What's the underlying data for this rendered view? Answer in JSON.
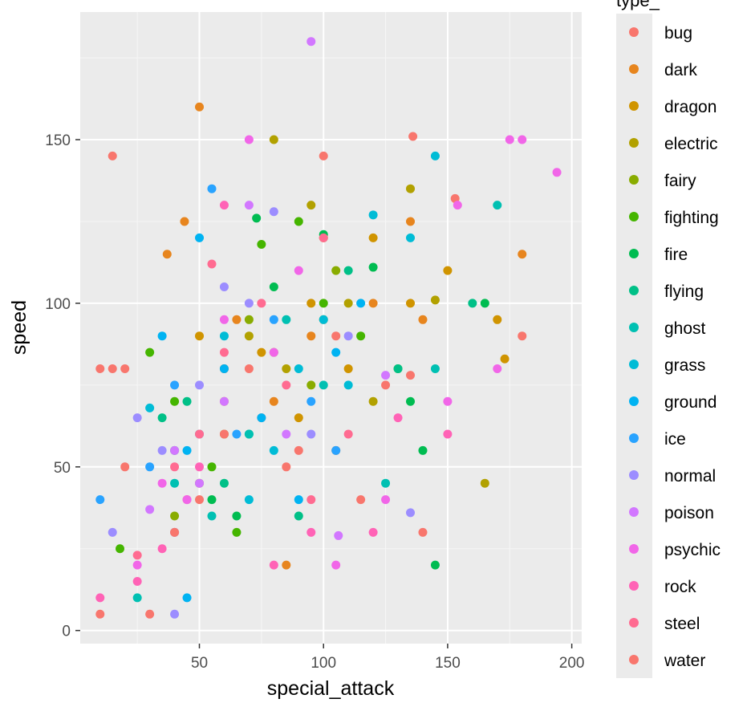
{
  "chart_data": {
    "type": "scatter",
    "title": "",
    "xlabel": "special_attack",
    "ylabel": "speed",
    "xlim": [
      2,
      204
    ],
    "ylim": [
      -4,
      189
    ],
    "x_ticks": [
      50,
      100,
      150,
      200
    ],
    "y_ticks": [
      0,
      50,
      100,
      150
    ],
    "grid": true,
    "legend_title": "type_",
    "legend_position": "right",
    "series": [
      {
        "name": "bug",
        "color": "#F8766D",
        "x": [
          15,
          136,
          20,
          45,
          60,
          75,
          90,
          105,
          125,
          153
        ],
        "y": [
          145,
          151,
          50,
          40,
          80,
          65,
          55,
          90,
          75,
          132
        ]
      },
      {
        "name": "dark",
        "color": "#E7851E",
        "x": [
          50,
          37,
          44,
          60,
          65,
          80,
          95,
          105,
          120,
          135,
          180,
          140,
          85
        ],
        "y": [
          160,
          115,
          125,
          80,
          95,
          70,
          90,
          55,
          100,
          125,
          115,
          95,
          20
        ]
      },
      {
        "name": "dragon",
        "color": "#D09400",
        "x": [
          50,
          60,
          75,
          90,
          95,
          100,
          110,
          120,
          135,
          150,
          170,
          173
        ],
        "y": [
          90,
          70,
          85,
          65,
          100,
          95,
          80,
          120,
          100,
          110,
          95,
          83
        ]
      },
      {
        "name": "electric",
        "color": "#B2A100",
        "x": [
          80,
          95,
          100,
          110,
          120,
          135,
          145,
          165,
          70,
          85
        ],
        "y": [
          150,
          130,
          120,
          100,
          70,
          135,
          101,
          45,
          90,
          80
        ]
      },
      {
        "name": "fairy",
        "color": "#89AC00",
        "x": [
          40,
          50,
          60,
          70,
          80,
          95,
          105
        ],
        "y": [
          35,
          45,
          60,
          95,
          85,
          75,
          110
        ]
      },
      {
        "name": "fighting",
        "color": "#45B500",
        "x": [
          18,
          30,
          40,
          55,
          65,
          75,
          90,
          100,
          115,
          130
        ],
        "y": [
          25,
          85,
          70,
          50,
          30,
          118,
          125,
          100,
          90,
          80
        ]
      },
      {
        "name": "fire",
        "color": "#00BC51",
        "x": [
          40,
          55,
          65,
          73,
          80,
          100,
          120,
          135,
          140,
          145,
          165
        ],
        "y": [
          55,
          40,
          35,
          126,
          105,
          121,
          111,
          70,
          55,
          20,
          100
        ]
      },
      {
        "name": "flying",
        "color": "#00C087",
        "x": [
          35,
          45,
          60,
          70,
          90,
          110,
          130,
          160
        ],
        "y": [
          65,
          70,
          45,
          60,
          35,
          110,
          80,
          100
        ]
      },
      {
        "name": "ghost",
        "color": "#00C0B2",
        "x": [
          25,
          40,
          55,
          70,
          85,
          100,
          125,
          145,
          170
        ],
        "y": [
          10,
          45,
          35,
          60,
          95,
          75,
          45,
          80,
          130
        ]
      },
      {
        "name": "grass",
        "color": "#00BCD6",
        "x": [
          30,
          40,
          50,
          60,
          70,
          80,
          90,
          100,
          110,
          120,
          135,
          145
        ],
        "y": [
          68,
          30,
          60,
          90,
          40,
          55,
          80,
          95,
          75,
          127,
          120,
          145
        ]
      },
      {
        "name": "ground",
        "color": "#00B3F2",
        "x": [
          35,
          45,
          50,
          60,
          75,
          90,
          105,
          115,
          45
        ],
        "y": [
          90,
          55,
          120,
          80,
          65,
          40,
          85,
          100,
          10
        ]
      },
      {
        "name": "ice",
        "color": "#29A3FF",
        "x": [
          10,
          30,
          40,
          55,
          65,
          80,
          95,
          105
        ],
        "y": [
          40,
          50,
          75,
          135,
          60,
          95,
          70,
          55
        ]
      },
      {
        "name": "normal",
        "color": "#9C8DFF",
        "x": [
          15,
          25,
          35,
          40,
          50,
          60,
          70,
          80,
          95,
          110,
          135
        ],
        "y": [
          30,
          65,
          55,
          5,
          75,
          105,
          100,
          128,
          60,
          90,
          36
        ]
      },
      {
        "name": "poison",
        "color": "#D277FF",
        "x": [
          30,
          40,
          50,
          60,
          70,
          85,
          95,
          106,
          125
        ],
        "y": [
          37,
          55,
          45,
          70,
          130,
          60,
          180,
          29,
          78
        ]
      },
      {
        "name": "psychic",
        "color": "#F166E8",
        "x": [
          25,
          35,
          45,
          60,
          70,
          80,
          90,
          105,
          125,
          150,
          154,
          170,
          175,
          180,
          194
        ],
        "y": [
          20,
          45,
          40,
          95,
          150,
          85,
          110,
          20,
          40,
          70,
          130,
          80,
          150,
          150,
          140
        ]
      },
      {
        "name": "rock",
        "color": "#FF63B6",
        "x": [
          10,
          25,
          35,
          40,
          50,
          60,
          80,
          95,
          120,
          130,
          150
        ],
        "y": [
          10,
          15,
          25,
          30,
          50,
          130,
          20,
          30,
          30,
          65,
          60
        ]
      },
      {
        "name": "steel",
        "color": "#FF6B91",
        "x": [
          25,
          40,
          50,
          55,
          60,
          75,
          85,
          95,
          100,
          110
        ],
        "y": [
          23,
          50,
          60,
          112,
          85,
          100,
          75,
          40,
          120,
          60
        ]
      },
      {
        "name": "water",
        "color": "#F8766D",
        "x": [
          10,
          15,
          20,
          30,
          40,
          50,
          60,
          70,
          85,
          100,
          115,
          135,
          140,
          180,
          10
        ],
        "y": [
          80,
          80,
          80,
          5,
          30,
          40,
          60,
          80,
          50,
          145,
          40,
          78,
          30,
          90,
          5
        ]
      }
    ]
  }
}
